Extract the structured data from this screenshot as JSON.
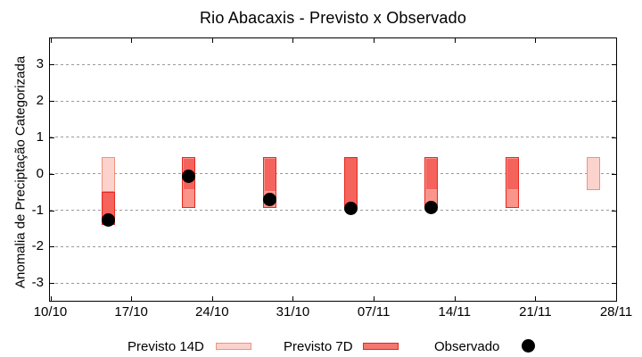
{
  "chart_data": {
    "type": "bar",
    "title": "Rio Abacaxis - Previsto x Observado",
    "ylabel": "Anomalia de Preciptação Categorizada",
    "xlabel": "",
    "ylim": [
      -3.5,
      3.7
    ],
    "yticks": [
      3,
      2,
      1,
      0,
      -1,
      -2,
      -3
    ],
    "xticks": [
      "10/10",
      "17/10",
      "24/10",
      "31/10",
      "07/11",
      "14/11",
      "21/11",
      "28/11"
    ],
    "x_tick_interval_days": 7,
    "grid": "horizontal-dotted",
    "legend_position": "bottom",
    "legend": [
      {
        "label": "Previsto 14D",
        "swatch": "light-pink-box"
      },
      {
        "label": "Previsto 7D",
        "swatch": "red-box"
      },
      {
        "label": "Observado",
        "swatch": "black-dot"
      }
    ],
    "bars": [
      {
        "date": "15/10",
        "day": 5,
        "boxes": [
          {
            "style": "light",
            "from": 0.45,
            "to": -0.5
          },
          {
            "style": "dark-outlined",
            "from": -0.5,
            "to": -1.4
          }
        ],
        "observed": -1.28
      },
      {
        "date": "22/10",
        "day": 12,
        "boxes": [
          {
            "style": "salmon",
            "from": 0.45,
            "to": -0.95
          },
          {
            "style": "dark-inner",
            "from": 0.45,
            "to": -0.45
          }
        ],
        "observed": -0.06
      },
      {
        "date": "29/10",
        "day": 19,
        "boxes": [
          {
            "style": "salmon",
            "from": 0.45,
            "to": -0.95
          },
          {
            "style": "dark-inner",
            "from": 0.45,
            "to": -0.5
          }
        ],
        "observed": -0.7
      },
      {
        "date": "05/11",
        "day": 26,
        "boxes": [
          {
            "style": "dark-outlined",
            "from": 0.45,
            "to": -0.95
          }
        ],
        "observed": -0.95
      },
      {
        "date": "12/11",
        "day": 33,
        "boxes": [
          {
            "style": "salmon",
            "from": 0.45,
            "to": -0.95
          },
          {
            "style": "dark-inner",
            "from": 0.45,
            "to": -0.45
          }
        ],
        "observed": -0.93
      },
      {
        "date": "19/11",
        "day": 40,
        "boxes": [
          {
            "style": "salmon",
            "from": 0.45,
            "to": -0.95
          },
          {
            "style": "dark-inner",
            "from": 0.45,
            "to": -0.45
          }
        ],
        "observed": null
      },
      {
        "date": "26/11",
        "day": 47,
        "boxes": [
          {
            "style": "light",
            "from": 0.45,
            "to": -0.45
          }
        ],
        "observed": null
      }
    ],
    "observed_series": {
      "name": "Observado",
      "dates": [
        "15/10",
        "22/10",
        "29/10",
        "05/11",
        "12/11"
      ],
      "values": [
        -1.28,
        -0.06,
        -0.7,
        -0.95,
        -0.93
      ]
    },
    "colors": {
      "bar_14d_fill": "#fbd3cc",
      "bar_14d_border": "#f0917f",
      "bar_7d_fill": "#fa958c",
      "bar_7d_border": "#e8271e",
      "bar_overlap_fill": "#f4635c",
      "seam_line": "#f7a39a",
      "observed_dot": "#000000",
      "grid": "#9a9a9a",
      "axis": "#000000",
      "legend_7d_swatch_fill": "#f4766e"
    }
  }
}
